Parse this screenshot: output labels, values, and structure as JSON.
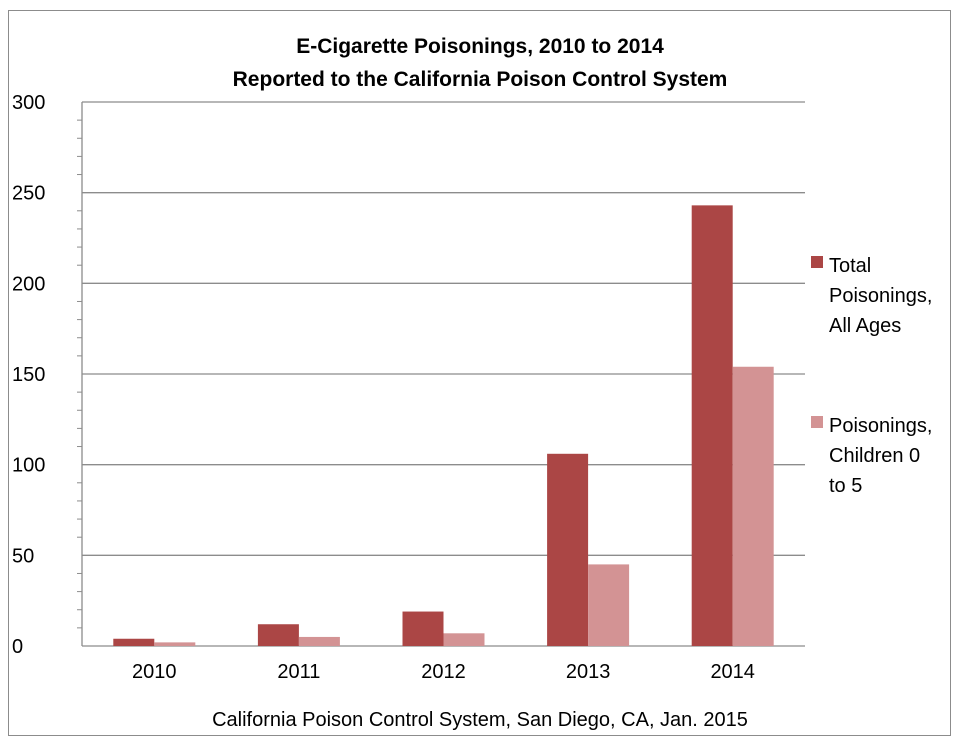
{
  "chart_data": {
    "type": "bar",
    "title": [
      "E-Cigarette Poisonings, 2010 to 2014",
      "Reported to the California Poison Control System"
    ],
    "xlabel": "",
    "ylabel": "",
    "categories": [
      "2010",
      "2011",
      "2012",
      "2013",
      "2014"
    ],
    "series": [
      {
        "name_lines": [
          "Total",
          "Poisonings,",
          "All Ages"
        ],
        "values": [
          4,
          12,
          19,
          106,
          243
        ],
        "color": "#ab4645"
      },
      {
        "name_lines": [
          "Poisonings,",
          "Children 0",
          "to 5"
        ],
        "values": [
          2,
          5,
          7,
          45,
          154
        ],
        "color": "#d39394"
      }
    ],
    "ylim": [
      0,
      300
    ],
    "yticks": [
      0,
      50,
      100,
      150,
      200,
      250,
      300
    ],
    "minor_tick_step": 10,
    "grid": true,
    "legend": "right",
    "source": "California Poison Control System, San Diego, CA, Jan. 2015"
  }
}
